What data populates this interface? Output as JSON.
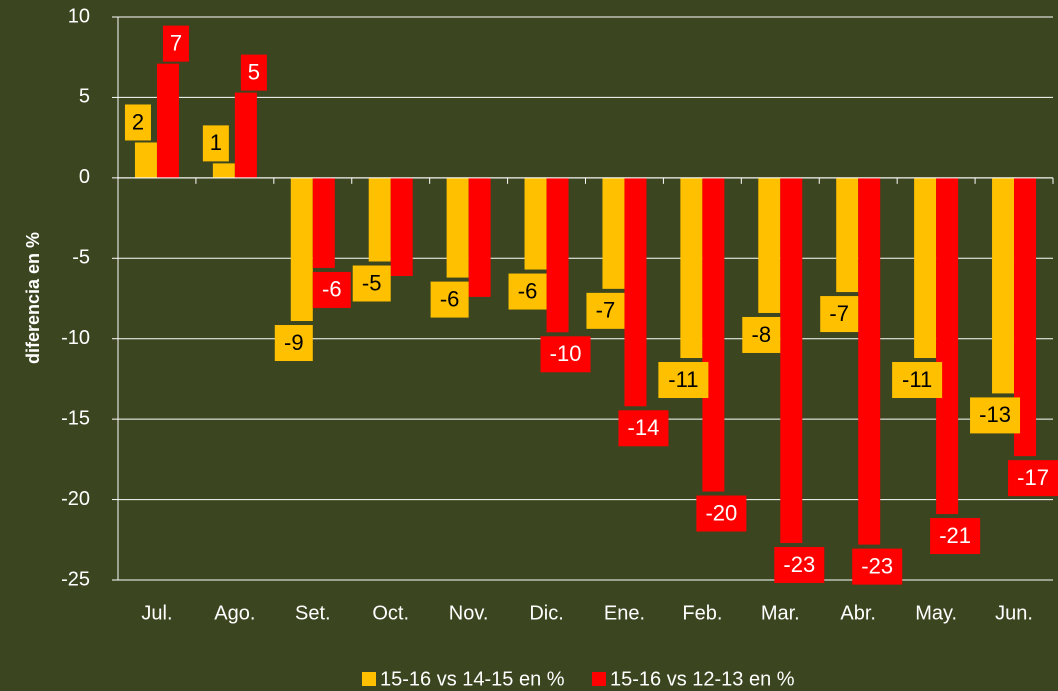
{
  "chart_data": {
    "type": "bar",
    "ylabel": "diferencia en %",
    "categories": [
      "Jul.",
      "Ago.",
      "Set.",
      "Oct.",
      "Nov.",
      "Dic.",
      "Ene.",
      "Feb.",
      "Mar.",
      "Abr.",
      "May.",
      "Jun."
    ],
    "series": [
      {
        "name": "15-16 vs 14-15 en %",
        "color": "#ffc000",
        "values": [
          2.2,
          0.9,
          -8.9,
          -5.2,
          -6.2,
          -5.7,
          -6.9,
          -11.2,
          -8.4,
          -7.1,
          -11.2,
          -13.4
        ],
        "value_labels": [
          "2",
          "1",
          "-9",
          "-5",
          "-6",
          "-6",
          "-7",
          "-11",
          "-8",
          "-7",
          "-11",
          "-13"
        ]
      },
      {
        "name": "15-16 vs 12-13 en %",
        "color": "#ff0000",
        "values": [
          7.1,
          5.3,
          -5.6,
          -6.1,
          -7.4,
          -9.6,
          -14.2,
          -19.5,
          -22.7,
          -22.8,
          -20.9,
          -17.3
        ],
        "value_labels": [
          "7",
          "5",
          "-6",
          null,
          null,
          "-10",
          "-14",
          "-20",
          "-23",
          "-23",
          "-21",
          "-17"
        ]
      }
    ],
    "ylim": [
      -25,
      10
    ],
    "yticks": [
      -25,
      -20,
      -15,
      -10,
      -5,
      0,
      5,
      10
    ],
    "grid": true,
    "legend": "bottom"
  }
}
